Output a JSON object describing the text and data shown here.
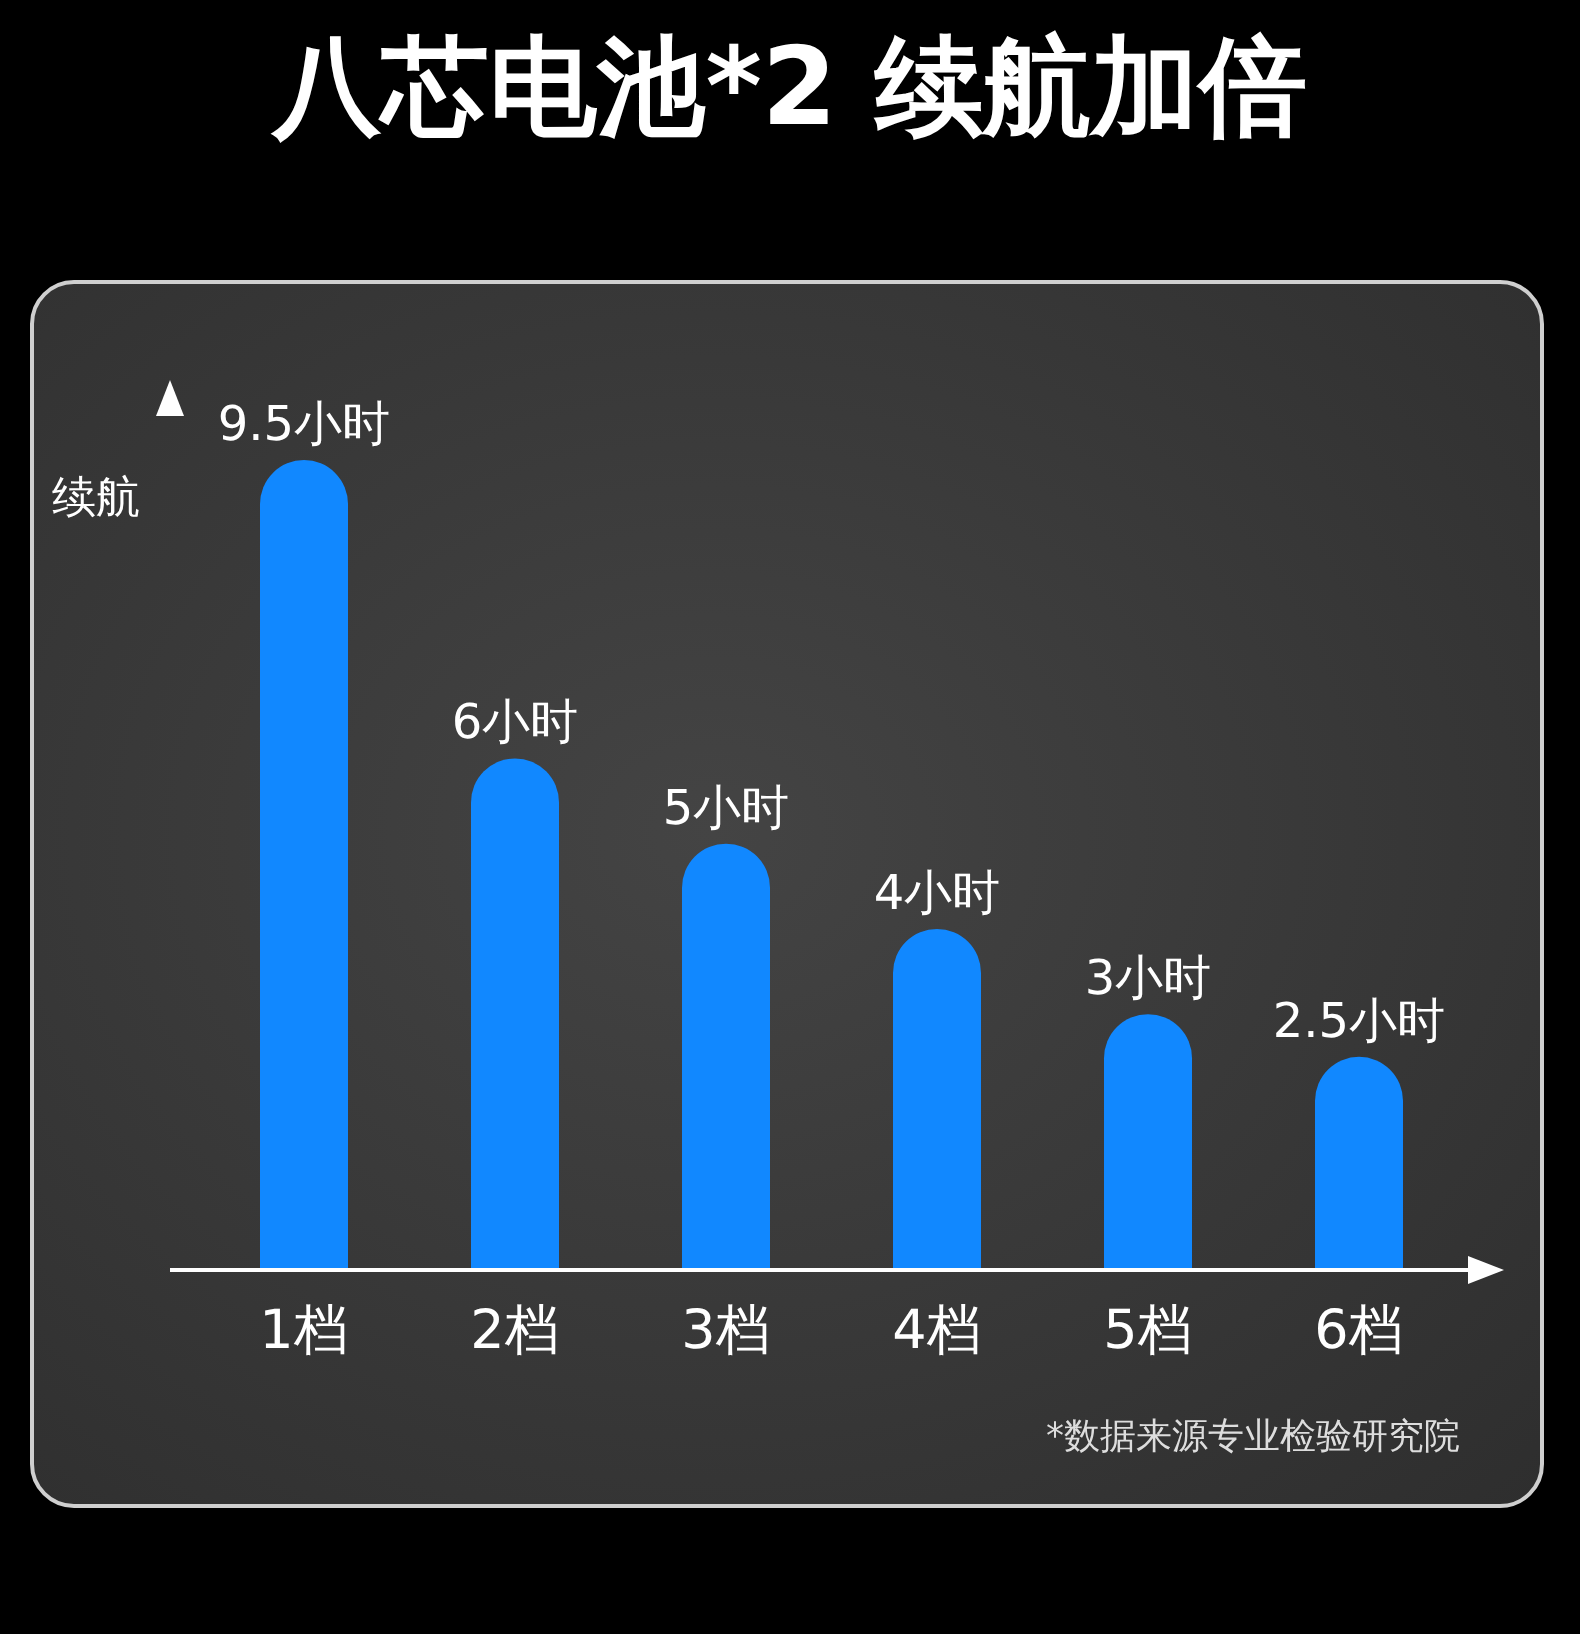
{
  "chart_data": {
    "type": "bar",
    "title": "八芯电池*2 续航加倍",
    "ylabel": "续航",
    "categories": [
      "1档",
      "2档",
      "3档",
      "4档",
      "5档",
      "6档"
    ],
    "values": [
      9.5,
      6,
      5,
      4,
      3,
      2.5
    ],
    "value_labels": [
      "9.5小时",
      "6小时",
      "5小时",
      "4小时",
      "3小时",
      "2.5小时"
    ],
    "color": "#1188ff",
    "annotations": [
      "*数据来源专业检验研究院"
    ]
  }
}
